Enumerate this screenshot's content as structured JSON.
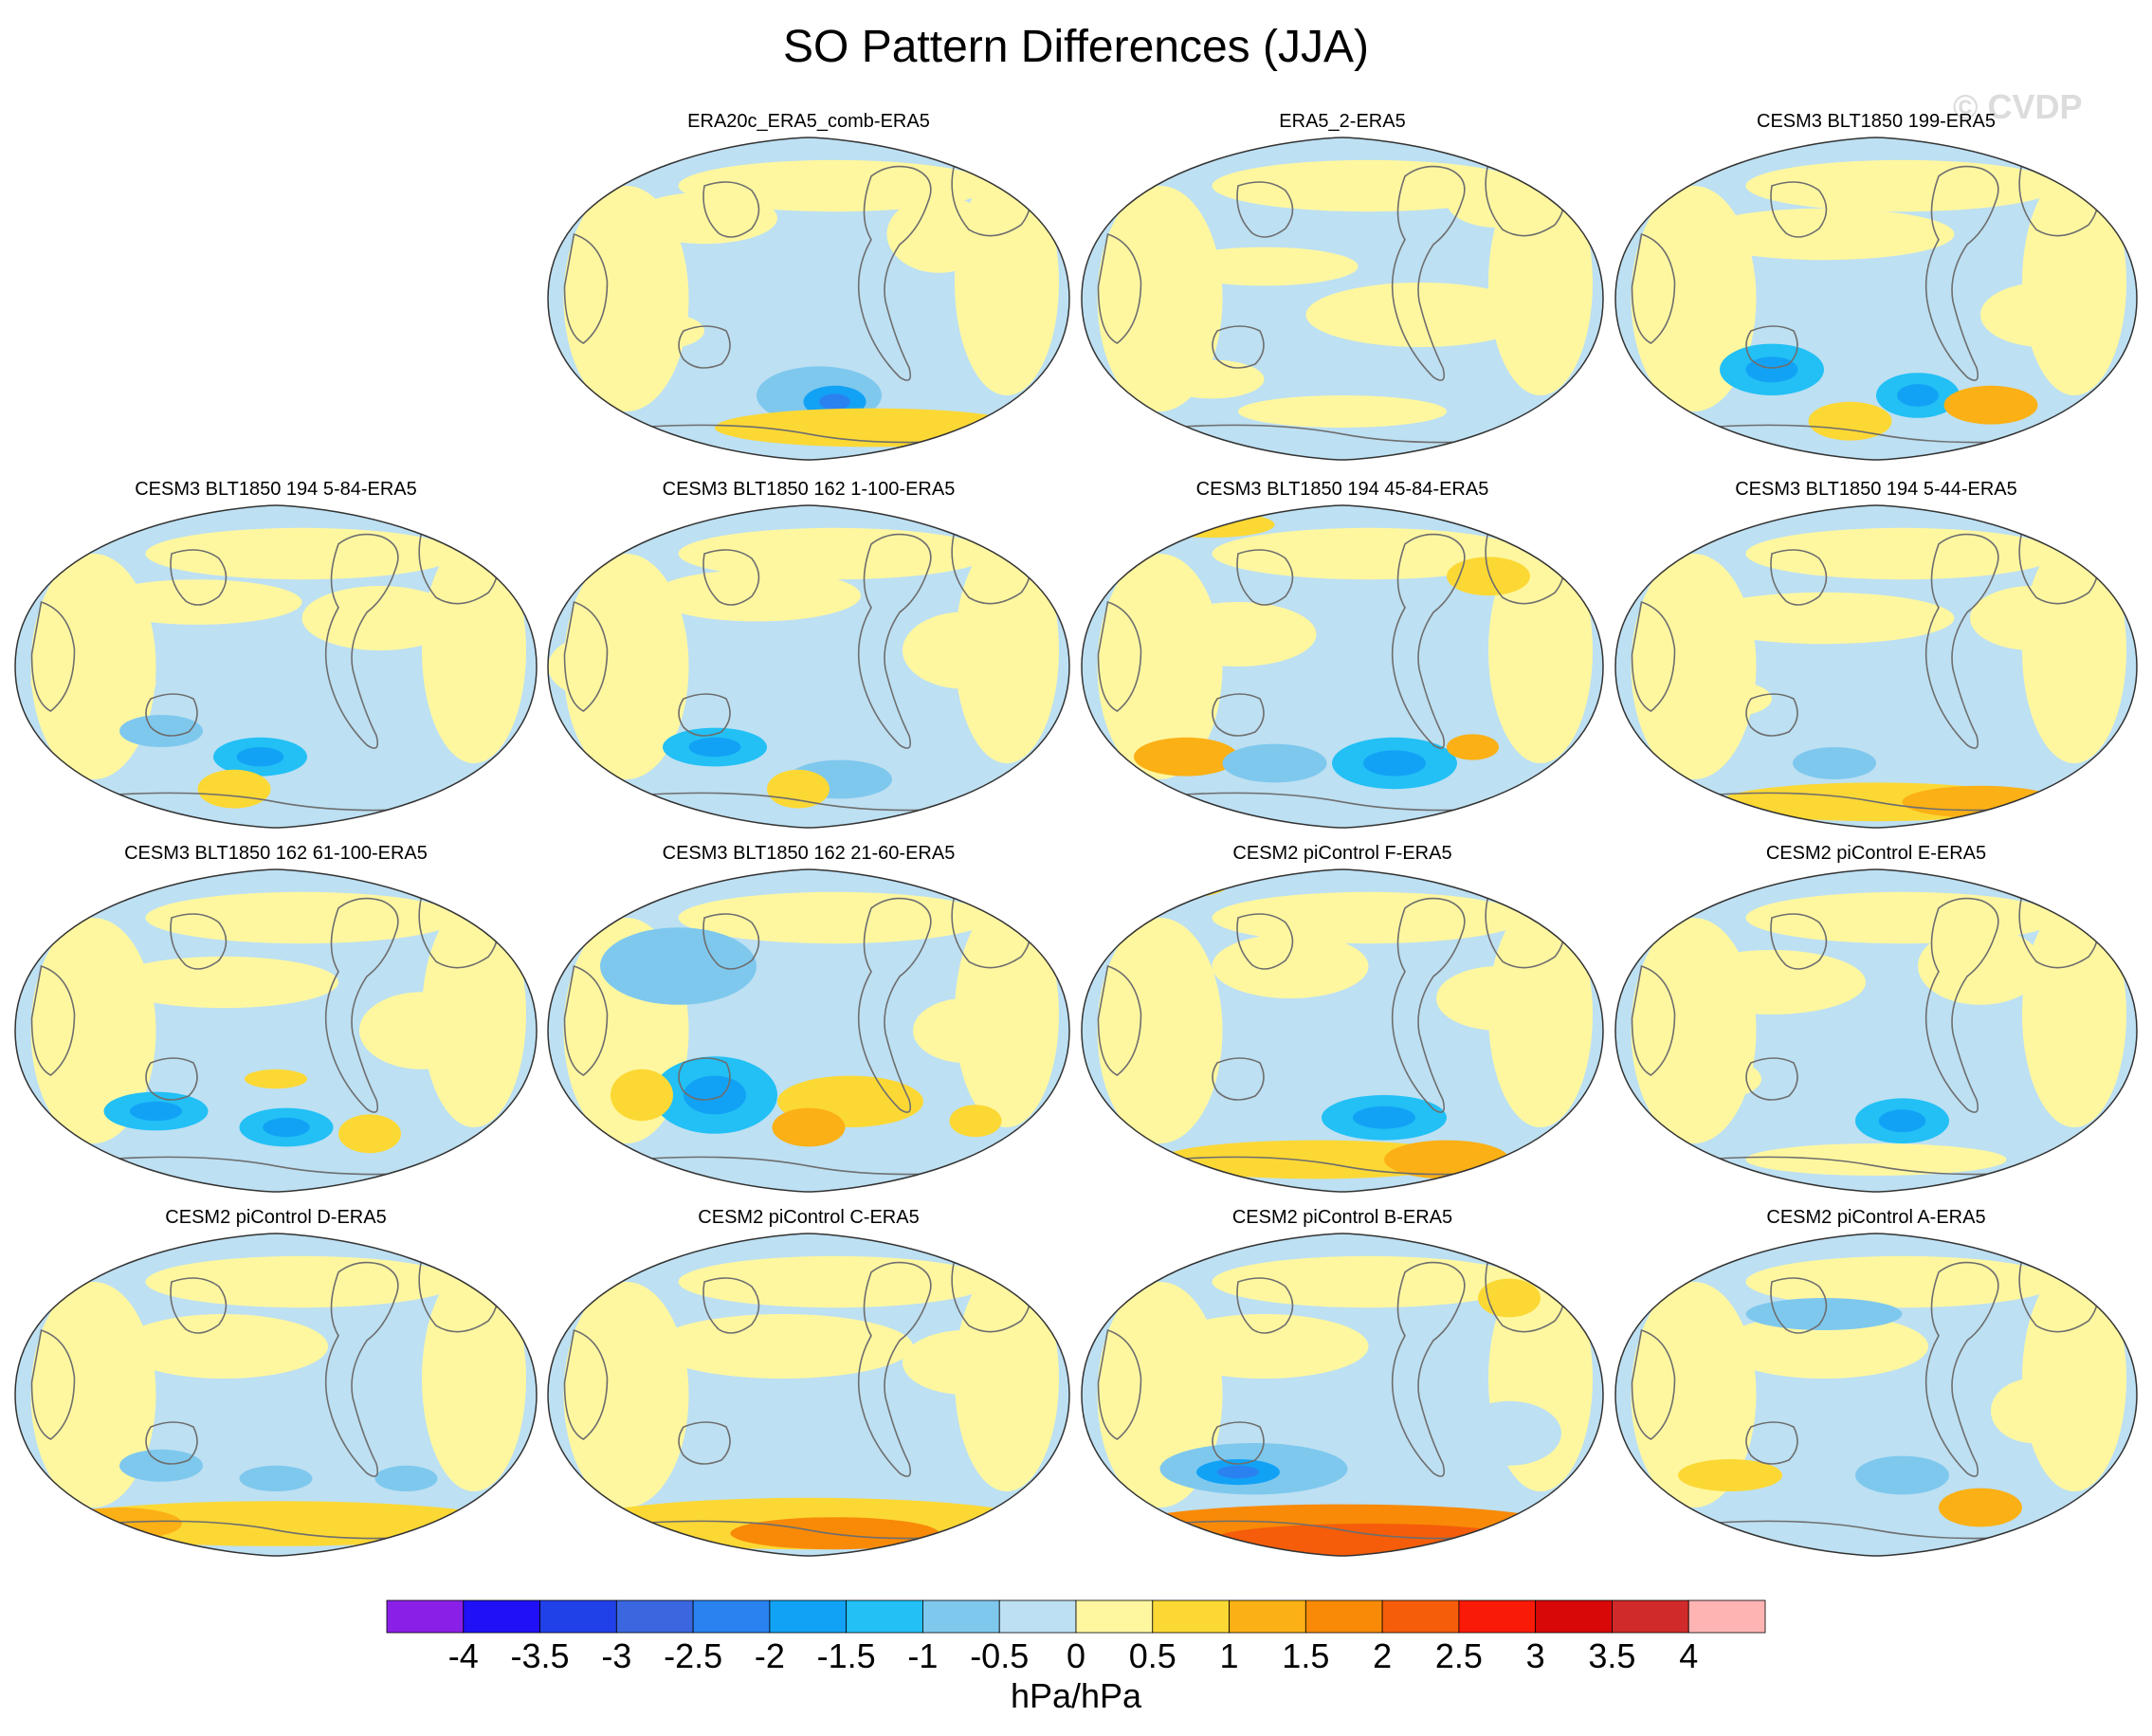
{
  "chart_data": {
    "type": "heatmap",
    "title": "SO Pattern Differences (JJA)",
    "watermark": "© CVDP",
    "projection": "Robinson (global, Pacific-centered)",
    "field": "sea level pressure pattern difference",
    "units": "hPa/hPa",
    "colorbar": {
      "ticks": [
        "-4",
        "-3.5",
        "-3",
        "-2.5",
        "-2",
        "-1.5",
        "-1",
        "-0.5",
        "0",
        "0.5",
        "1",
        "1.5",
        "2",
        "2.5",
        "3",
        "3.5",
        "4"
      ],
      "colors": [
        "#8a20e8",
        "#2010f5",
        "#2040e8",
        "#3a66e0",
        "#2a82f0",
        "#12a2f5",
        "#22c0f5",
        "#7ec8ee",
        "#bde0f2",
        "#fff7a0",
        "#fcd835",
        "#fbb015",
        "#f88a08",
        "#f55d0a",
        "#fa1a08",
        "#d80808",
        "#d02a2a",
        "#ffb4b4"
      ],
      "range": [
        -4,
        4
      ]
    },
    "panels": [
      {
        "label": "ERA20c_ERA5_comb-ERA5",
        "row": 0,
        "col": 1
      },
      {
        "label": "ERA5_2-ERA5",
        "row": 0,
        "col": 2
      },
      {
        "label": "CESM3 BLT1850 199-ERA5",
        "row": 0,
        "col": 3
      },
      {
        "label": "CESM3 BLT1850 194 5-84-ERA5",
        "row": 1,
        "col": 0
      },
      {
        "label": "CESM3 BLT1850 162 1-100-ERA5",
        "row": 1,
        "col": 1
      },
      {
        "label": "CESM3 BLT1850 194 45-84-ERA5",
        "row": 1,
        "col": 2
      },
      {
        "label": "CESM3 BLT1850 194 5-44-ERA5",
        "row": 1,
        "col": 3
      },
      {
        "label": "CESM3 BLT1850 162 61-100-ERA5",
        "row": 2,
        "col": 0
      },
      {
        "label": "CESM3 BLT1850 162 21-60-ERA5",
        "row": 2,
        "col": 1
      },
      {
        "label": "CESM2 piControl F-ERA5",
        "row": 2,
        "col": 2
      },
      {
        "label": "CESM2 piControl E-ERA5",
        "row": 2,
        "col": 3
      },
      {
        "label": "CESM2 piControl D-ERA5",
        "row": 3,
        "col": 0
      },
      {
        "label": "CESM2 piControl C-ERA5",
        "row": 3,
        "col": 1
      },
      {
        "label": "CESM2 piControl B-ERA5",
        "row": 3,
        "col": 2
      },
      {
        "label": "CESM2 piControl A-ERA5",
        "row": 3,
        "col": 3
      }
    ]
  }
}
